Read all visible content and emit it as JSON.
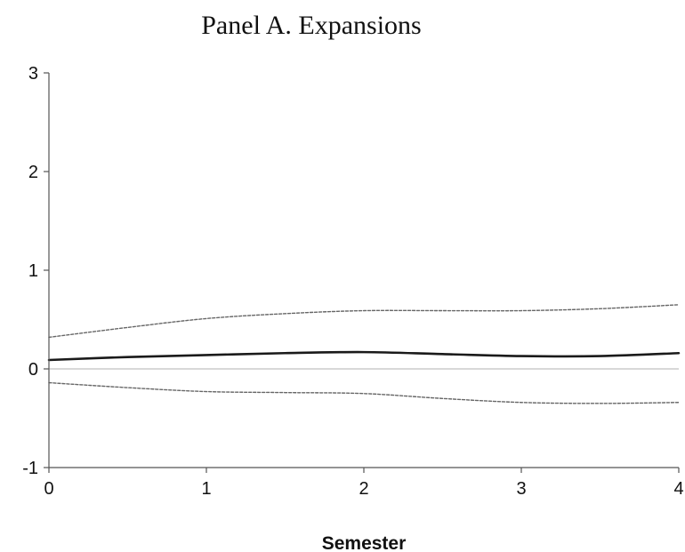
{
  "chart_data": {
    "type": "line",
    "title": "Panel A. Expansions",
    "xlabel": "Semester",
    "ylabel": "",
    "xlim": [
      0,
      4
    ],
    "ylim": [
      -1,
      3
    ],
    "x_ticks": [
      "0",
      "1",
      "2",
      "3",
      "4"
    ],
    "y_ticks": [
      "3",
      "2",
      "1",
      "0",
      "-1"
    ],
    "grid": false,
    "zero_line": true,
    "series": [
      {
        "style": "solid",
        "color": "#1a1a1a",
        "x": [
          0,
          0.5,
          1,
          1.5,
          2,
          2.5,
          3,
          3.5,
          4
        ],
        "y": [
          0.09,
          0.12,
          0.14,
          0.16,
          0.17,
          0.15,
          0.13,
          0.13,
          0.16
        ]
      },
      {
        "style": "dotted",
        "color": "#666666",
        "x": [
          0,
          0.5,
          1,
          1.5,
          2,
          2.5,
          3,
          3.5,
          4
        ],
        "y": [
          0.32,
          0.42,
          0.51,
          0.56,
          0.59,
          0.59,
          0.59,
          0.61,
          0.65
        ]
      },
      {
        "style": "dotted",
        "color": "#666666",
        "x": [
          0,
          0.5,
          1,
          1.5,
          2,
          2.5,
          3,
          3.5,
          4
        ],
        "y": [
          -0.14,
          -0.19,
          -0.23,
          -0.24,
          -0.25,
          -0.3,
          -0.34,
          -0.35,
          -0.34
        ]
      }
    ]
  }
}
